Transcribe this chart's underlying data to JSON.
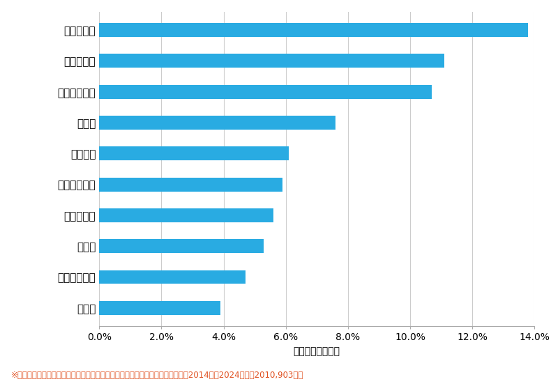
{
  "categories": [
    "柏崎市",
    "新潟市江南区",
    "上越市",
    "新潟市北区",
    "新潟市秋葉区",
    "新発田市",
    "長岡市",
    "新潟市中央区",
    "新潟市東区",
    "新潟市西区"
  ],
  "values": [
    3.9,
    4.7,
    5.3,
    5.6,
    5.9,
    6.1,
    7.6,
    10.7,
    11.1,
    13.8
  ],
  "bar_color": "#29ABE2",
  "xlabel": "件数の割合（％）",
  "xlim": [
    0,
    14.0
  ],
  "xticks": [
    0.0,
    2.0,
    4.0,
    6.0,
    8.0,
    10.0,
    12.0,
    14.0
  ],
  "xtick_labels": [
    "0.0%",
    "2.0%",
    "4.0%",
    "6.0%",
    "8.0%",
    "10.0%",
    "12.0%",
    "14.0%"
  ],
  "footnote": "※弊社受付の案件を対象に、受付時に市区町村の回答があったものを集計（期間2014年～2024年、と2010,903件）",
  "background_color": "#ffffff",
  "grid_color": "#cccccc",
  "bar_height": 0.45
}
